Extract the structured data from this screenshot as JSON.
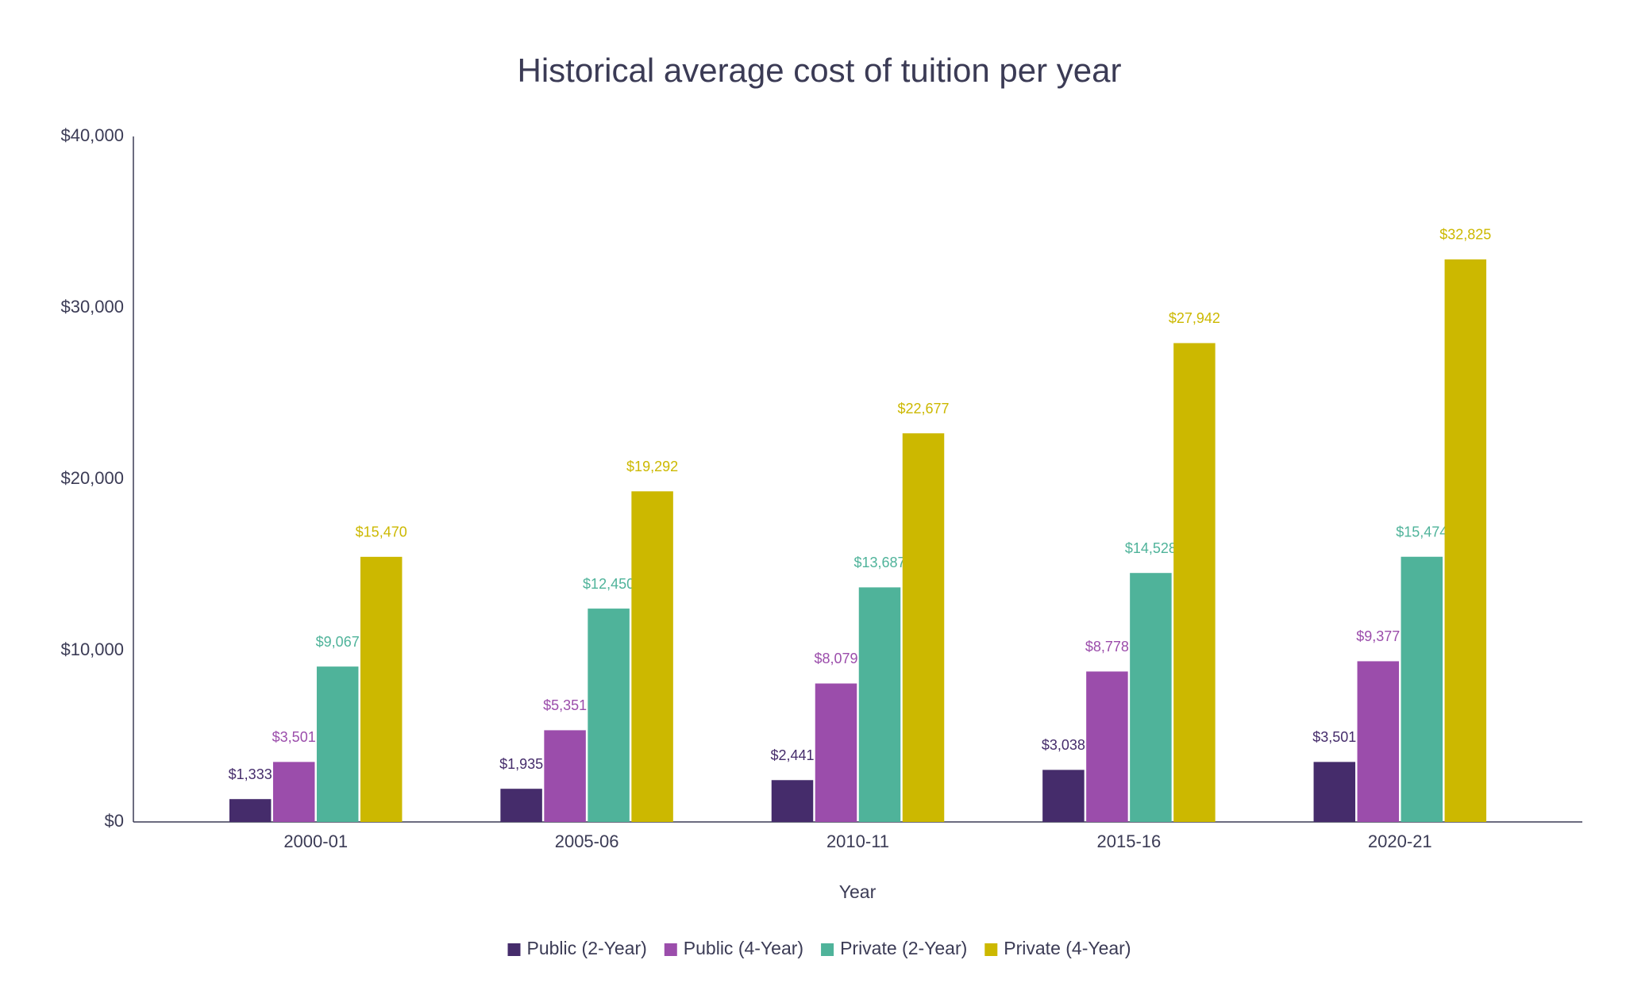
{
  "chart_data": {
    "type": "bar",
    "title": "Historical average cost of tuition per year",
    "x_label": "Year",
    "categories": [
      "2000-01",
      "2005-06",
      "2010-11",
      "2015-16",
      "2020-21"
    ],
    "series": [
      {
        "name": "Public (2-Year)",
        "color": "#452c6b",
        "values": [
          1333,
          1935,
          2441,
          3038,
          3501
        ],
        "value_labels": [
          "$1,333",
          "$1,935",
          "$2,441",
          "$3,038",
          "$3,501"
        ]
      },
      {
        "name": "Public (4-Year)",
        "color": "#9b4dab",
        "values": [
          3501,
          5351,
          8079,
          8778,
          9377
        ],
        "value_labels": [
          "$3,501",
          "$5,351",
          "$8,079",
          "$8,778",
          "$9,377"
        ]
      },
      {
        "name": "Private (2-Year)",
        "color": "#4fb39a",
        "values": [
          9067,
          12450,
          13687,
          14528,
          15474
        ],
        "value_labels": [
          "$9,067",
          "$12,450",
          "$13,687",
          "$14,528",
          "$15,474"
        ]
      },
      {
        "name": "Private (4-Year)",
        "color": "#ccb800",
        "values": [
          15470,
          19292,
          22677,
          27942,
          32825
        ],
        "value_labels": [
          "$15,470",
          "$19,292",
          "$22,677",
          "$27,942",
          "$32,825"
        ]
      }
    ],
    "ylim": [
      0,
      40000
    ],
    "yticks": [
      {
        "value": 0,
        "label": "$0"
      },
      {
        "value": 10000,
        "label": "$10,000"
      },
      {
        "value": 20000,
        "label": "$20,000"
      },
      {
        "value": 30000,
        "label": "$30,000"
      },
      {
        "value": 40000,
        "label": "$40,000"
      }
    ],
    "grid": false,
    "legend": "bottom"
  }
}
